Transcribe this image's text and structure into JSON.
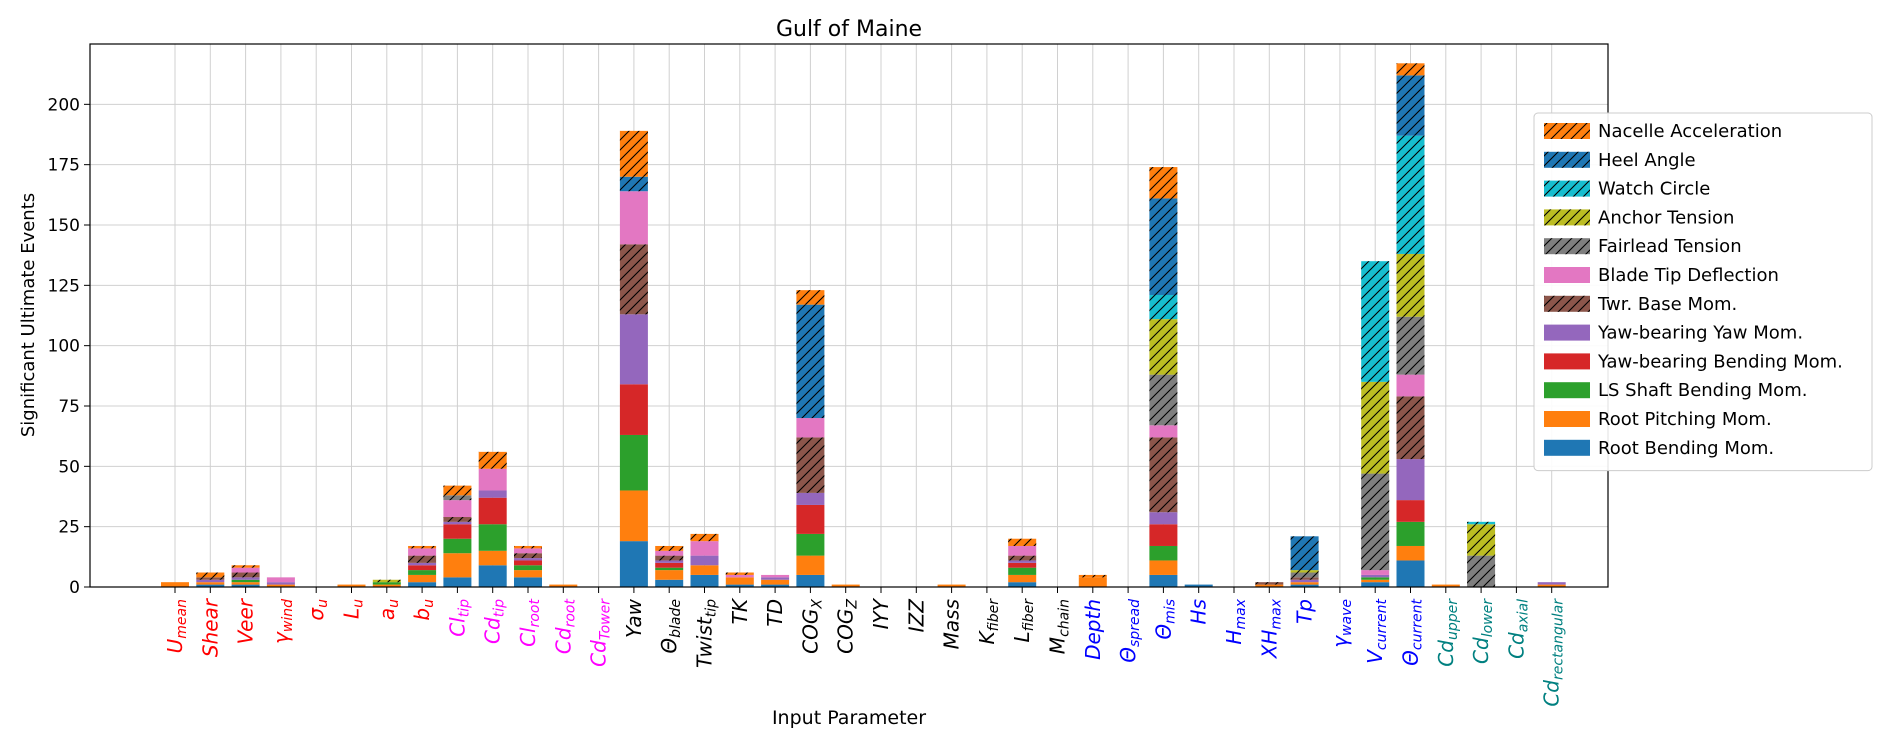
{
  "chart_data": {
    "type": "bar",
    "stacked": true,
    "title": "Gulf of Maine",
    "xlabel": "Input Parameter",
    "ylabel": "Significant Ultimate Events",
    "ylim": [
      0,
      225
    ],
    "yticks": [
      0,
      25,
      50,
      75,
      100,
      125,
      150,
      175,
      200
    ],
    "grid": true,
    "legend_position": "right",
    "categories": [
      {
        "base": "U",
        "sub": "mean",
        "color": "#ff0000"
      },
      {
        "base": "Shear",
        "sub": "",
        "color": "#ff0000"
      },
      {
        "base": "Veer",
        "sub": "",
        "color": "#ff0000"
      },
      {
        "base": "γ",
        "sub": "wind",
        "color": "#ff0000"
      },
      {
        "base": "σ",
        "sub": "u",
        "color": "#ff0000"
      },
      {
        "base": "L",
        "sub": "u",
        "color": "#ff0000"
      },
      {
        "base": "a",
        "sub": "u",
        "color": "#ff0000"
      },
      {
        "base": "b",
        "sub": "u",
        "color": "#ff0000"
      },
      {
        "base": "Cl",
        "sub": "tip",
        "color": "#ff00ff"
      },
      {
        "base": "Cd",
        "sub": "tip",
        "color": "#ff00ff"
      },
      {
        "base": "Cl",
        "sub": "root",
        "color": "#ff00ff"
      },
      {
        "base": "Cd",
        "sub": "root",
        "color": "#ff00ff"
      },
      {
        "base": "Cd",
        "sub": "Tower",
        "color": "#ff00ff"
      },
      {
        "base": "Yaw",
        "sub": "",
        "color": "#000000"
      },
      {
        "base": "Θ",
        "sub": "blade",
        "color": "#000000"
      },
      {
        "base": "Twist",
        "sub": "tip",
        "color": "#000000"
      },
      {
        "base": "TK",
        "sub": "",
        "color": "#000000"
      },
      {
        "base": "TD",
        "sub": "",
        "color": "#000000"
      },
      {
        "base": "COG",
        "sub": "X",
        "color": "#000000"
      },
      {
        "base": "COG",
        "sub": "Z",
        "color": "#000000"
      },
      {
        "base": "IYY",
        "sub": "",
        "color": "#000000"
      },
      {
        "base": "IZZ",
        "sub": "",
        "color": "#000000"
      },
      {
        "base": "Mass",
        "sub": "",
        "color": "#000000"
      },
      {
        "base": "K",
        "sub": "fiber",
        "color": "#000000"
      },
      {
        "base": "L",
        "sub": "fiber",
        "color": "#000000"
      },
      {
        "base": "M",
        "sub": "chain",
        "color": "#000000"
      },
      {
        "base": "Depth",
        "sub": "",
        "color": "#0000ff"
      },
      {
        "base": "Θ",
        "sub": "spread",
        "color": "#0000ff"
      },
      {
        "base": "Θ",
        "sub": "mis",
        "color": "#0000ff"
      },
      {
        "base": "Hs",
        "sub": "",
        "color": "#0000ff"
      },
      {
        "base": "H",
        "sub": "max",
        "color": "#0000ff"
      },
      {
        "base": "XH",
        "sub": "max",
        "color": "#0000ff"
      },
      {
        "base": "Tp",
        "sub": "",
        "color": "#0000ff"
      },
      {
        "base": "γ",
        "sub": "wave",
        "color": "#0000ff"
      },
      {
        "base": "V",
        "sub": "current",
        "color": "#0000ff"
      },
      {
        "base": "Θ",
        "sub": "current",
        "color": "#0000ff"
      },
      {
        "base": "Cd",
        "sub": "upper",
        "color": "#008080"
      },
      {
        "base": "Cd",
        "sub": "lower",
        "color": "#008080"
      },
      {
        "base": "Cd",
        "sub": "axial",
        "color": "#008080"
      },
      {
        "base": "Cd",
        "sub": "rectangular",
        "color": "#008080"
      }
    ],
    "series": [
      {
        "name": "Root Bending Mom.",
        "color": "#1f77b4",
        "hatch": false,
        "values": [
          0,
          1,
          1,
          0,
          0,
          0,
          0,
          2,
          4,
          9,
          4,
          0,
          0,
          19,
          3,
          5,
          1,
          1,
          5,
          0,
          0,
          0,
          0,
          0,
          2,
          0,
          0,
          0,
          5,
          1,
          0,
          0,
          1,
          0,
          2,
          11,
          0,
          0,
          0,
          0
        ]
      },
      {
        "name": "Root Pitching Mom.",
        "color": "#ff7f0e",
        "hatch": false,
        "values": [
          2,
          1,
          1,
          1,
          0,
          1,
          1,
          3,
          10,
          6,
          3,
          1,
          0,
          21,
          4,
          4,
          3,
          2,
          8,
          1,
          0,
          0,
          1,
          0,
          3,
          0,
          4,
          0,
          6,
          0,
          0,
          1,
          1,
          0,
          1,
          6,
          1,
          0,
          0,
          1
        ]
      },
      {
        "name": "LS Shaft Bending Mom.",
        "color": "#2ca02c",
        "hatch": false,
        "values": [
          0,
          0,
          1,
          0,
          0,
          0,
          1,
          2,
          6,
          11,
          2,
          0,
          0,
          23,
          1,
          0,
          0,
          0,
          9,
          0,
          0,
          0,
          0,
          0,
          3,
          0,
          0,
          0,
          6,
          0,
          0,
          0,
          0,
          0,
          1,
          10,
          0,
          0,
          0,
          0
        ]
      },
      {
        "name": "Yaw-bearing Bending Mom.",
        "color": "#d62728",
        "hatch": false,
        "values": [
          0,
          0,
          0,
          0,
          0,
          0,
          0,
          2,
          6,
          11,
          2,
          0,
          0,
          21,
          2,
          0,
          0,
          0,
          12,
          0,
          0,
          0,
          0,
          0,
          2,
          0,
          0,
          0,
          9,
          0,
          0,
          0,
          0,
          0,
          0,
          9,
          0,
          0,
          0,
          0
        ]
      },
      {
        "name": "Yaw-bearing Yaw Mom.",
        "color": "#9467bd",
        "hatch": false,
        "values": [
          0,
          1,
          1,
          1,
          0,
          0,
          0,
          1,
          1,
          3,
          1,
          0,
          0,
          29,
          1,
          4,
          0,
          1,
          5,
          0,
          0,
          0,
          0,
          0,
          1,
          0,
          0,
          0,
          5,
          0,
          0,
          0,
          1,
          0,
          1,
          17,
          0,
          0,
          0,
          1
        ]
      },
      {
        "name": "Twr. Base Mom.",
        "color": "#8c564b",
        "hatch": true,
        "values": [
          0,
          1,
          2,
          0,
          0,
          0,
          0,
          3,
          2,
          0,
          2,
          0,
          0,
          29,
          2,
          0,
          0,
          0,
          23,
          0,
          0,
          0,
          0,
          0,
          2,
          0,
          0,
          0,
          31,
          0,
          0,
          1,
          1,
          0,
          0,
          26,
          0,
          0,
          0,
          0
        ]
      },
      {
        "name": "Blade Tip Deflection",
        "color": "#e377c2",
        "hatch": false,
        "values": [
          0,
          0,
          2,
          2,
          0,
          0,
          0,
          3,
          7,
          9,
          2,
          0,
          0,
          22,
          2,
          6,
          1,
          1,
          8,
          0,
          0,
          0,
          0,
          0,
          4,
          0,
          0,
          0,
          5,
          0,
          0,
          0,
          0,
          0,
          2,
          9,
          0,
          0,
          0,
          0
        ]
      },
      {
        "name": "Fairlead Tension",
        "color": "#7f7f7f",
        "hatch": true,
        "values": [
          0,
          0,
          0,
          0,
          0,
          0,
          0,
          0,
          2,
          0,
          0,
          0,
          0,
          0,
          0,
          0,
          0,
          0,
          0,
          0,
          0,
          0,
          0,
          0,
          0,
          0,
          0,
          0,
          21,
          0,
          0,
          0,
          2,
          0,
          40,
          24,
          0,
          13,
          0,
          0
        ]
      },
      {
        "name": "Anchor Tension",
        "color": "#bcbd22",
        "hatch": true,
        "values": [
          0,
          0,
          0,
          0,
          0,
          0,
          1,
          0,
          0,
          0,
          0,
          0,
          0,
          0,
          0,
          0,
          0,
          0,
          0,
          0,
          0,
          0,
          0,
          0,
          0,
          0,
          0,
          0,
          23,
          0,
          0,
          0,
          1,
          0,
          38,
          26,
          0,
          13,
          0,
          0
        ]
      },
      {
        "name": "Watch Circle",
        "color": "#17becf",
        "hatch": true,
        "values": [
          0,
          0,
          0,
          0,
          0,
          0,
          0,
          0,
          0,
          0,
          0,
          0,
          0,
          0,
          0,
          0,
          0,
          0,
          0,
          0,
          0,
          0,
          0,
          0,
          0,
          0,
          0,
          0,
          10,
          0,
          0,
          0,
          0,
          0,
          50,
          49,
          0,
          1,
          0,
          0
        ]
      },
      {
        "name": "Heel Angle",
        "color": "#1f77b4",
        "hatch": true,
        "values": [
          0,
          0,
          0,
          0,
          0,
          0,
          0,
          0,
          0,
          0,
          0,
          0,
          0,
          6,
          0,
          0,
          0,
          0,
          47,
          0,
          0,
          0,
          0,
          0,
          0,
          0,
          0,
          0,
          40,
          0,
          0,
          0,
          14,
          0,
          0,
          25,
          0,
          0,
          0,
          0
        ]
      },
      {
        "name": "Nacelle Acceleration",
        "color": "#ff7f0e",
        "hatch": true,
        "values": [
          0,
          2,
          1,
          0,
          0,
          0,
          0,
          1,
          4,
          7,
          1,
          0,
          0,
          19,
          2,
          3,
          1,
          0,
          6,
          0,
          0,
          0,
          0,
          0,
          3,
          0,
          1,
          0,
          13,
          0,
          0,
          0,
          0,
          0,
          0,
          5,
          0,
          0,
          0,
          0
        ]
      }
    ]
  }
}
